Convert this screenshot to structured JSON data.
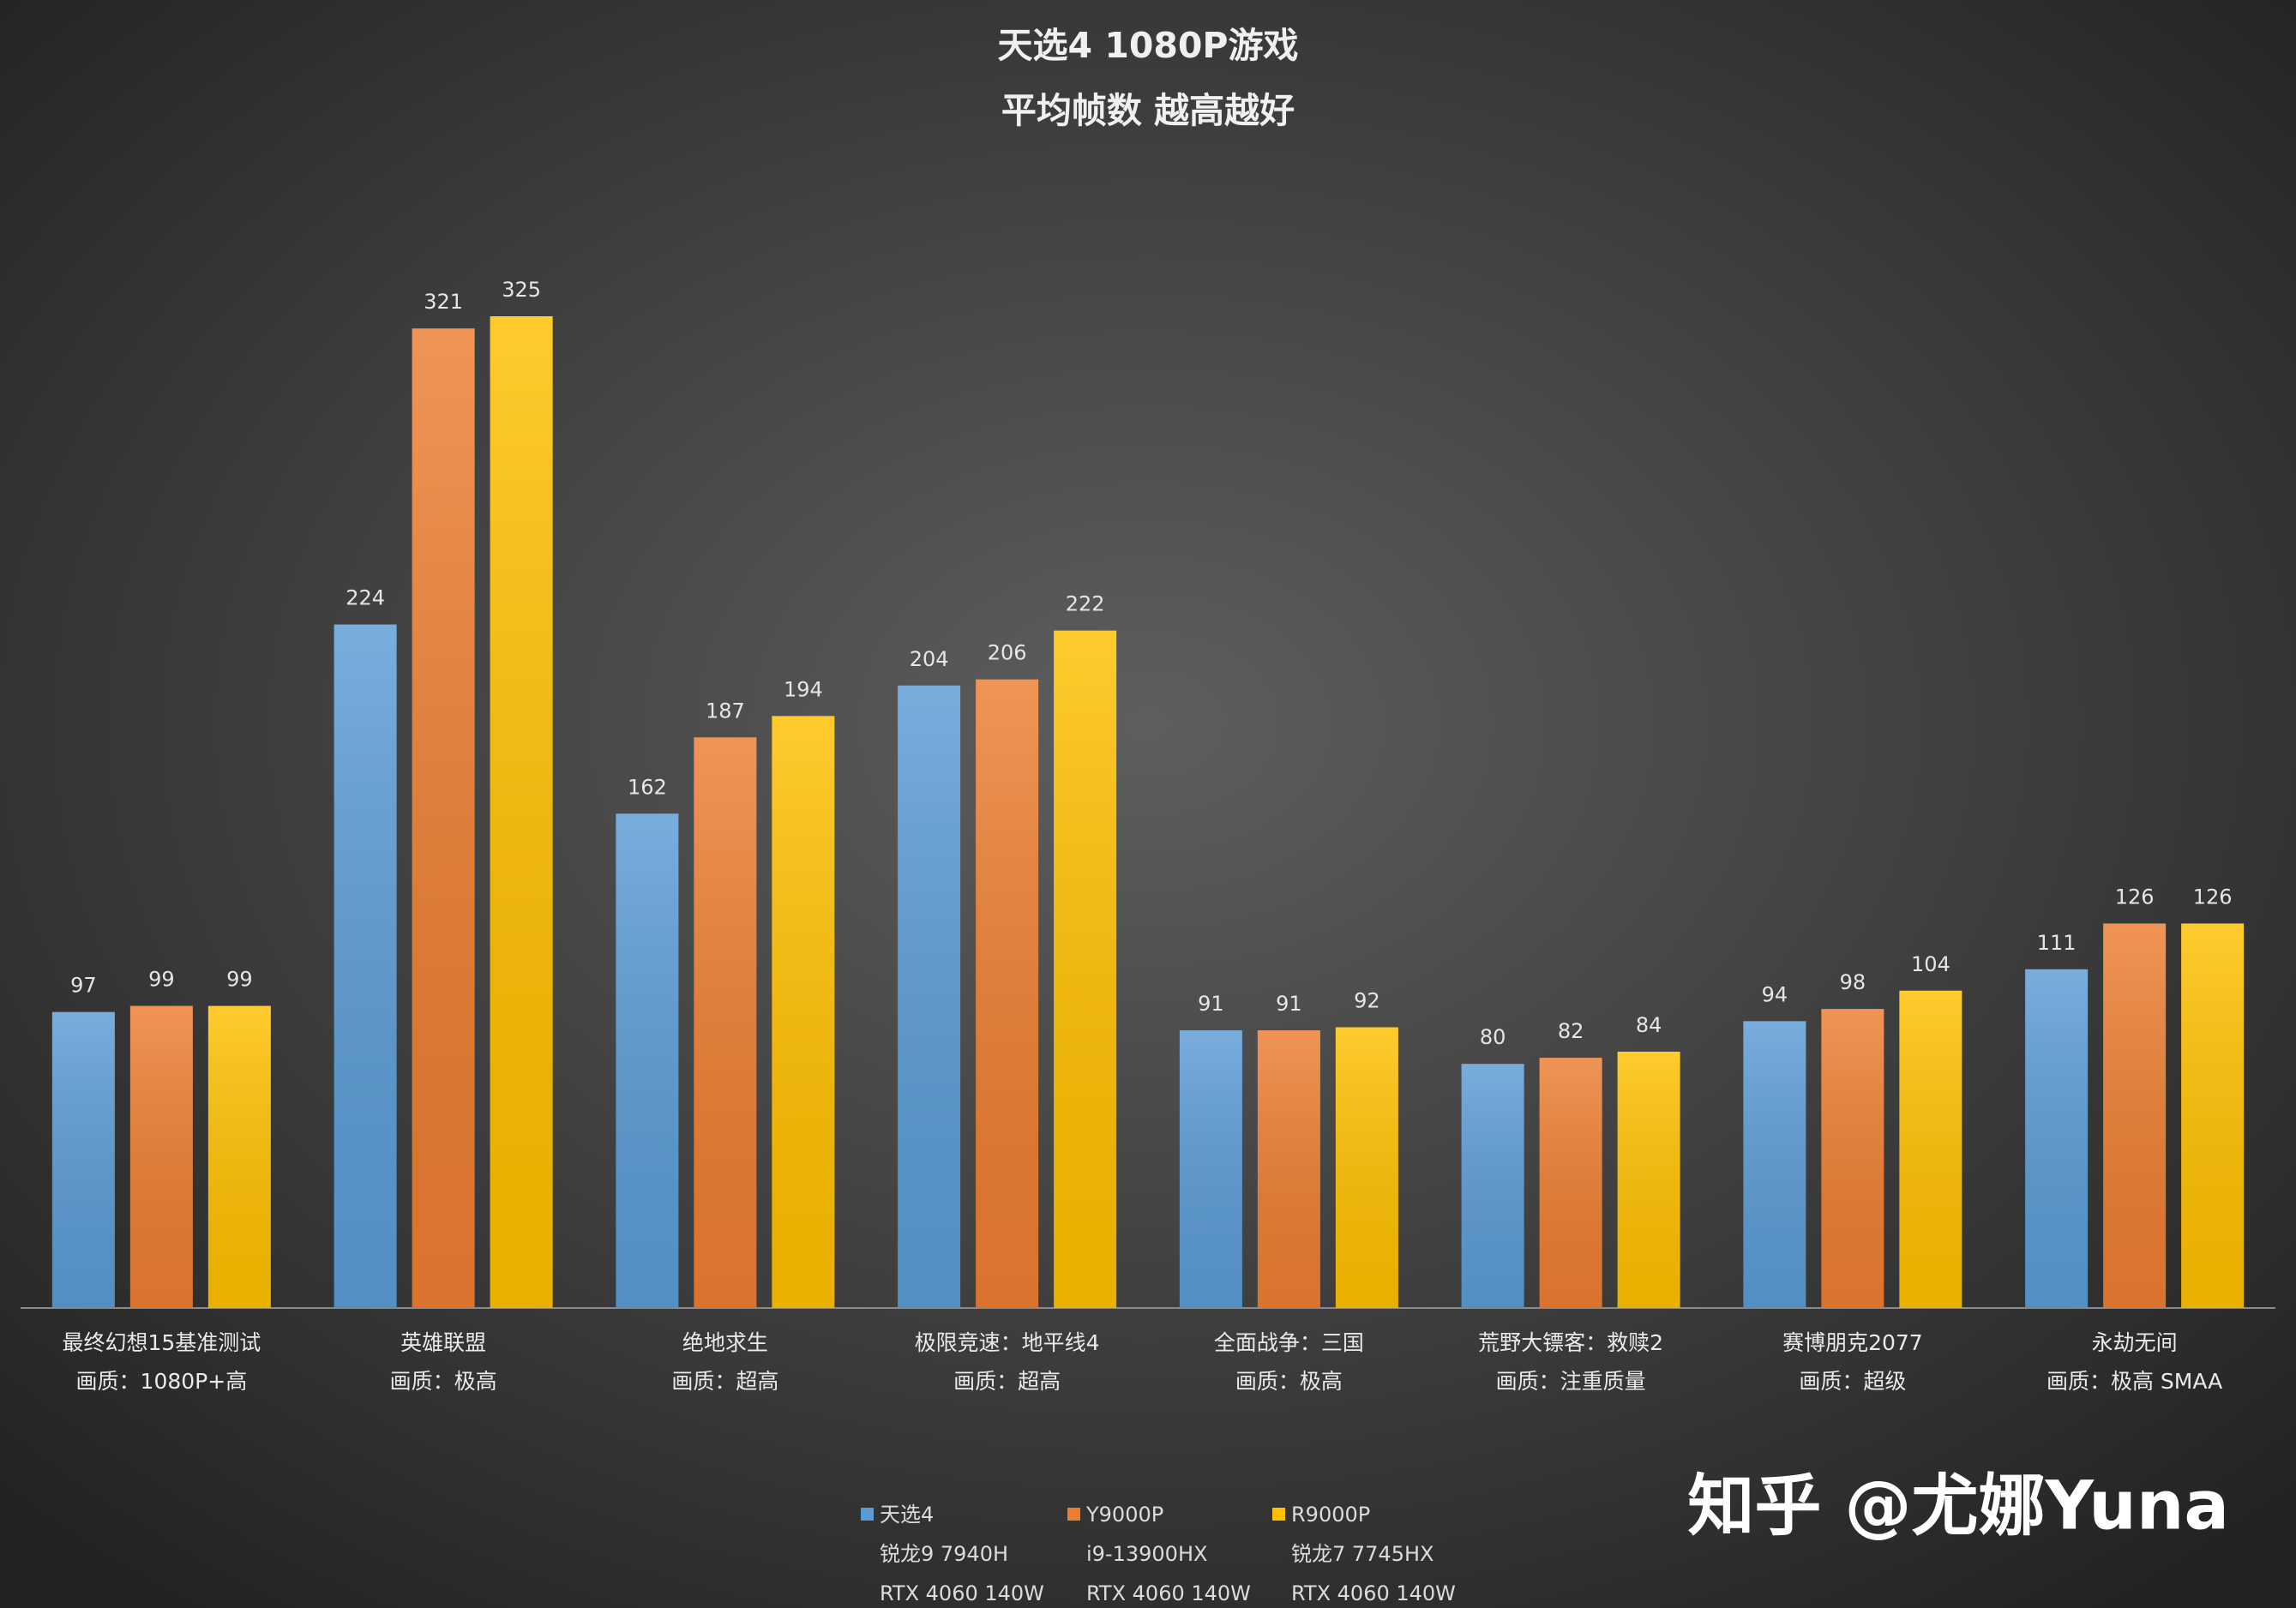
{
  "chart_data": {
    "type": "bar",
    "title": "天选4 1080P游戏",
    "subtitle": "平均帧数 越高越好",
    "categories": [
      "最终幻想15基准测试",
      "英雄联盟",
      "绝地求生",
      "极限竞速：地平线4",
      "全面战争：三国",
      "荒野大镖客：救赎2",
      "赛博朋克2077",
      "永劫无间"
    ],
    "category_settings": [
      "画质：1080P+高",
      "画质：极高",
      "画质：超高",
      "画质：超高",
      "画质：极高",
      "画质：注重质量",
      "画质：超级",
      "画质：极高 SMAA"
    ],
    "series": [
      {
        "name": "天选4",
        "details": [
          "锐龙9 7940H",
          "RTX 4060 140W"
        ],
        "color": "#5b9bd5",
        "values": [
          97,
          224,
          162,
          204,
          91,
          80,
          94,
          111
        ]
      },
      {
        "name": "Y9000P",
        "details": [
          "i9-13900HX",
          "RTX 4060 140W"
        ],
        "color": "#ed7d31",
        "values": [
          99,
          321,
          187,
          206,
          91,
          82,
          98,
          126
        ]
      },
      {
        "name": "R9000P",
        "details": [
          "锐龙7 7745HX",
          "RTX 4060 140W"
        ],
        "color": "#ffc000",
        "values": [
          99,
          325,
          194,
          222,
          92,
          84,
          104,
          126
        ]
      }
    ],
    "ylim": [
      0,
      350
    ],
    "grid": false,
    "legend": "bottom",
    "watermark": "知乎 @尤娜Yuna"
  }
}
